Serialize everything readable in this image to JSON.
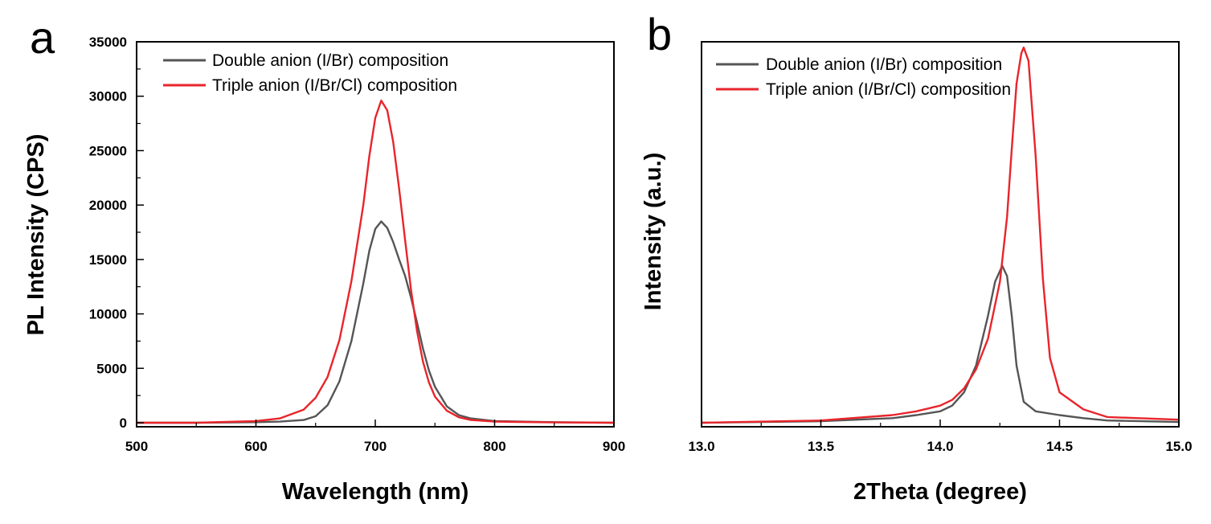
{
  "chart_data": [
    {
      "panel_label": "a",
      "type": "line",
      "xlabel": "Wavelength (nm)",
      "ylabel": "PL Intensity (CPS)",
      "xlim": [
        500,
        900
      ],
      "ylim": [
        0,
        35000
      ],
      "xticks": [
        "500",
        "600",
        "700",
        "800",
        "900"
      ],
      "yticks": [
        "0",
        "5000",
        "10000",
        "15000",
        "20000",
        "25000",
        "30000",
        "35000"
      ],
      "legend_position": "top-left",
      "grid": false,
      "series": [
        {
          "name": "Double anion (I/Br) composition",
          "color": "#555555",
          "x": [
            500,
            550,
            600,
            620,
            640,
            650,
            660,
            670,
            680,
            690,
            695,
            700,
            705,
            710,
            715,
            720,
            725,
            730,
            735,
            740,
            745,
            750,
            760,
            770,
            780,
            800,
            850,
            900
          ],
          "y": [
            0,
            0,
            50,
            100,
            250,
            600,
            1600,
            3800,
            7500,
            12800,
            15800,
            17800,
            18500,
            17900,
            16600,
            15000,
            13500,
            11500,
            9200,
            6800,
            4800,
            3300,
            1500,
            700,
            400,
            150,
            50,
            0
          ]
        },
        {
          "name": "Triple anion (I/Br/Cl) composition",
          "color": "#e8252b",
          "x": [
            500,
            550,
            600,
            620,
            640,
            650,
            660,
            670,
            680,
            690,
            695,
            700,
            705,
            710,
            715,
            720,
            725,
            730,
            735,
            740,
            745,
            750,
            760,
            770,
            780,
            800,
            850,
            900
          ],
          "y": [
            0,
            0,
            150,
            400,
            1200,
            2300,
            4200,
            7600,
            13000,
            20000,
            24500,
            28000,
            29600,
            28700,
            25800,
            21500,
            16800,
            12200,
            8400,
            5600,
            3700,
            2400,
            1100,
            500,
            250,
            100,
            30,
            0
          ]
        }
      ]
    },
    {
      "panel_label": "b",
      "type": "line",
      "xlabel": "2Theta (degree)",
      "ylabel": "Intensity (a.u.)",
      "xlim": [
        13.0,
        15.0
      ],
      "ylim": [
        0,
        1
      ],
      "xticks": [
        "13.0",
        "13.5",
        "14.0",
        "14.5",
        "15.0"
      ],
      "yticks": [],
      "legend_position": "top-left",
      "grid": false,
      "series": [
        {
          "name": "Double anion (I/Br) composition",
          "color": "#555555",
          "x": [
            13.0,
            13.5,
            13.8,
            13.9,
            14.0,
            14.05,
            14.1,
            14.15,
            14.2,
            14.23,
            14.26,
            14.28,
            14.3,
            14.32,
            14.35,
            14.4,
            14.5,
            14.6,
            14.7,
            15.0
          ],
          "y": [
            0.0,
            0.004,
            0.012,
            0.02,
            0.03,
            0.045,
            0.08,
            0.15,
            0.28,
            0.37,
            0.412,
            0.385,
            0.28,
            0.15,
            0.055,
            0.03,
            0.02,
            0.012,
            0.006,
            0.002
          ]
        },
        {
          "name": "Triple anion (I/Br/Cl) composition",
          "color": "#e8252b",
          "x": [
            13.0,
            13.5,
            13.8,
            13.9,
            14.0,
            14.05,
            14.1,
            14.15,
            14.2,
            14.25,
            14.28,
            14.3,
            14.32,
            14.34,
            14.35,
            14.37,
            14.4,
            14.43,
            14.46,
            14.5,
            14.6,
            14.7,
            15.0
          ],
          "y": [
            0.0,
            0.006,
            0.02,
            0.03,
            0.045,
            0.06,
            0.09,
            0.14,
            0.22,
            0.37,
            0.54,
            0.72,
            0.89,
            0.97,
            0.985,
            0.95,
            0.7,
            0.38,
            0.17,
            0.08,
            0.035,
            0.015,
            0.008
          ]
        }
      ]
    }
  ]
}
